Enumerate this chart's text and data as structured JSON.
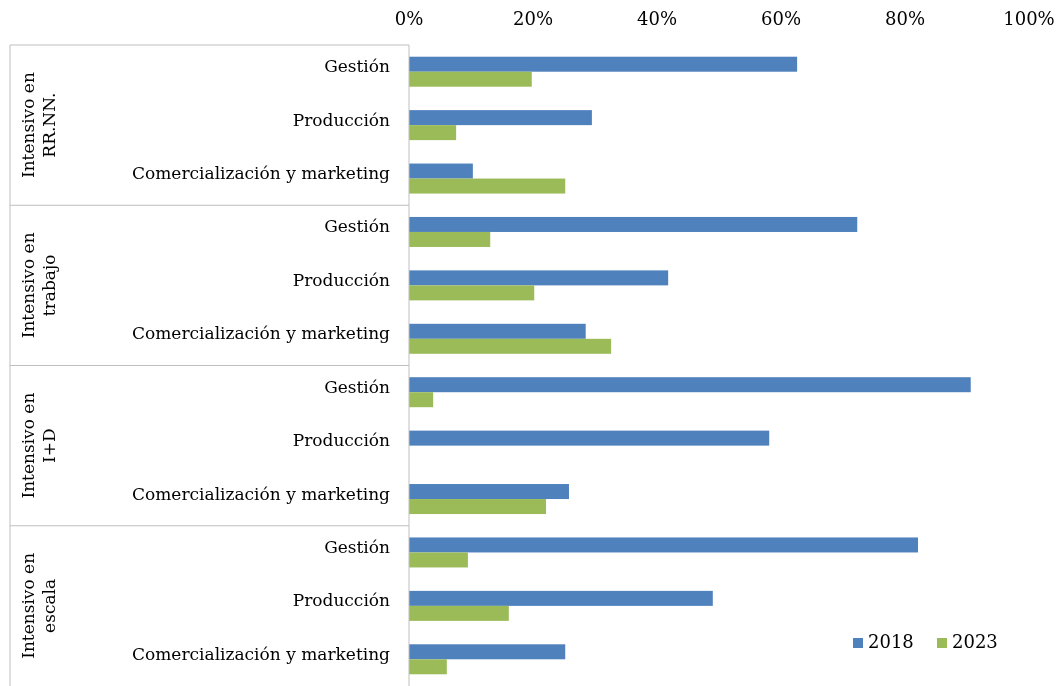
{
  "chart_data": {
    "type": "bar",
    "orientation": "horizontal",
    "categories": [
      "Gestión",
      "Producción",
      "Comercialización y marketing",
      "Gestión",
      "Producción",
      "Comercialización y marketing",
      "Gestión",
      "Producción",
      "Comercialización y marketing",
      "Gestión",
      "Producción",
      "Comercialización y marketing"
    ],
    "series": [
      {
        "name": "2018",
        "color": "#4f81bd",
        "values": [
          62.6,
          29.5,
          10.3,
          72.3,
          41.8,
          28.5,
          90.6,
          58.1,
          25.8,
          82.1,
          49.0,
          25.2
        ]
      },
      {
        "name": "2023",
        "color": "#9bbb59",
        "values": [
          19.8,
          7.6,
          25.2,
          13.1,
          20.2,
          32.6,
          3.9,
          0,
          22.1,
          9.5,
          16.1,
          6.1
        ]
      }
    ],
    "xlim": [
      0,
      100
    ],
    "xticks": [
      {
        "value": 0,
        "label": "0%"
      },
      {
        "value": 20,
        "label": "20%"
      },
      {
        "value": 40,
        "label": "40%"
      },
      {
        "value": 60,
        "label": "60%"
      },
      {
        "value": 80,
        "label": "80%"
      },
      {
        "value": 100,
        "label": "100%"
      }
    ],
    "annotations": [
      "Intensivo en RR.NN.",
      "Intensivo en trabajo",
      "Intensivo en I+D",
      "Intensivo en escala"
    ],
    "legend": "bottom right",
    "grid": false
  }
}
